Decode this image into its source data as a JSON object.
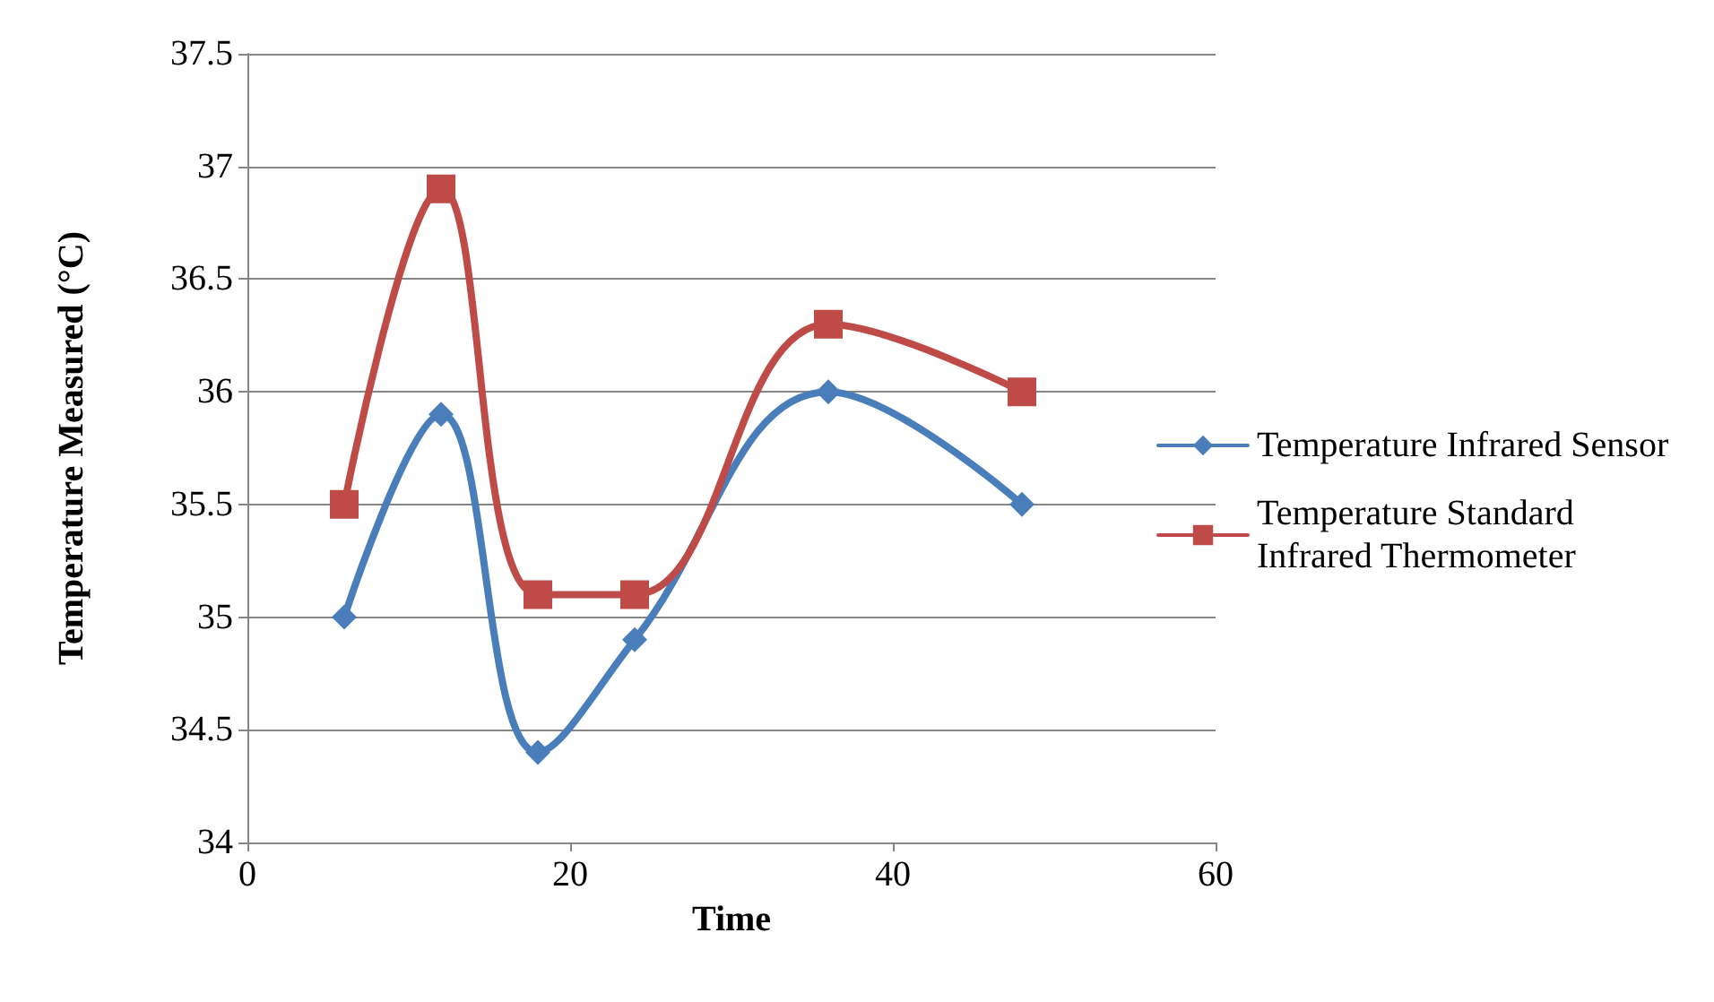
{
  "chart_data": {
    "type": "line",
    "xlabel": "Time",
    "ylabel": "Temperature Measured (°C)",
    "xlim": [
      0,
      60
    ],
    "xticks": [
      0,
      20,
      40,
      60
    ],
    "ylim": [
      34,
      37.5
    ],
    "yticks": [
      34,
      34.5,
      35,
      35.5,
      36,
      36.5,
      37,
      37.5
    ],
    "grid": "y",
    "legend": "right",
    "line_style": "solid",
    "series": [
      {
        "name": "Temperature Infrared Sensor",
        "color": "#4a7ebb",
        "marker": "diamond",
        "x": [
          6,
          12,
          18,
          24,
          36,
          48
        ],
        "values": [
          35,
          35.9,
          34.4,
          34.9,
          36,
          35.5
        ]
      },
      {
        "name": "Temperature Standard Infrared Thermometer",
        "color": "#be4b48",
        "marker": "square",
        "x": [
          6,
          12,
          18,
          24,
          36,
          48
        ],
        "values": [
          35.5,
          36.9,
          35.1,
          35.1,
          36.3,
          36
        ]
      }
    ]
  }
}
